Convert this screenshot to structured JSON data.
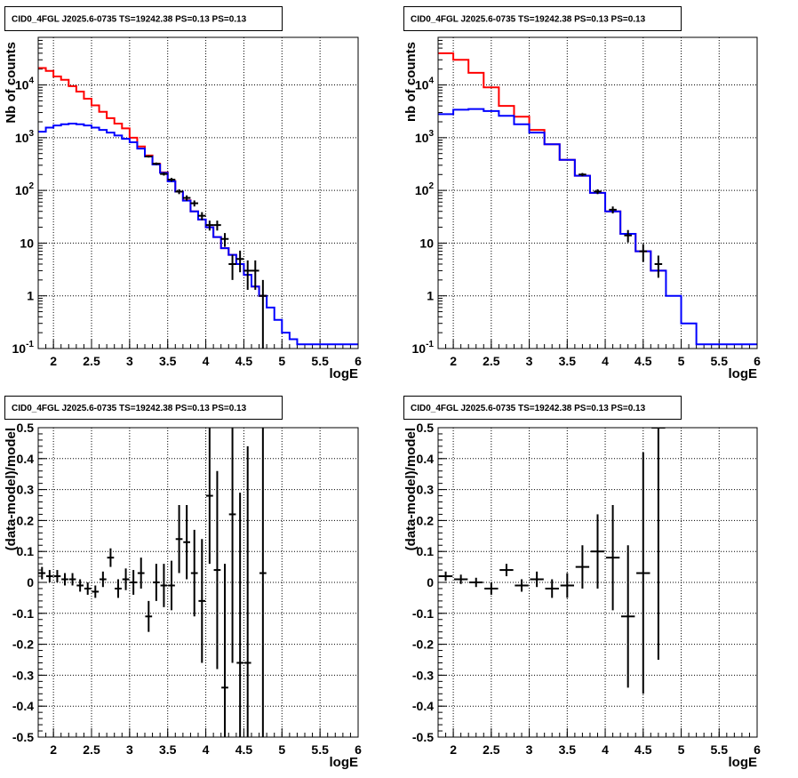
{
  "chart_data": [
    {
      "type": "step",
      "title": "CID0_4FGL J2025.6-0735 TS=19242.38 PS=0.13 PS=0.13",
      "xlabel": "logE",
      "ylabel": "Nb of counts",
      "xlim": [
        1.8,
        6
      ],
      "ylim": [
        0.1,
        80000
      ],
      "yscale": "log",
      "grid": true,
      "x_ticks": [
        "2",
        "2.5",
        "3",
        "3.5",
        "4",
        "4.5",
        "5",
        "5.5",
        "6"
      ],
      "y_ticks": [
        "10^-1",
        "1",
        "10",
        "10^2",
        "10^3",
        "10^4"
      ],
      "series": [
        {
          "color": "#ff0000",
          "bin_width": 0.1,
          "x": [
            1.85,
            1.95,
            2.05,
            2.15,
            2.25,
            2.35,
            2.45,
            2.55,
            2.65,
            2.75,
            2.85,
            2.95,
            3.05,
            3.15,
            3.25,
            3.35,
            3.45,
            3.55,
            3.65,
            3.75,
            3.85,
            3.95,
            4.05,
            4.15,
            4.25,
            4.35,
            4.45,
            4.55,
            4.65,
            4.75
          ],
          "values": [
            21000,
            18500,
            14500,
            12500,
            9500,
            7500,
            5500,
            4100,
            3100,
            2350,
            1850,
            1500,
            1000,
            680,
            460,
            320,
            220,
            150,
            95,
            65,
            40,
            28,
            20,
            13,
            8,
            6,
            4,
            2.5,
            1.5,
            1.0
          ]
        },
        {
          "color": "#0000ff",
          "bin_width": 0.1,
          "x": [
            1.85,
            1.95,
            2.05,
            2.15,
            2.25,
            2.35,
            2.45,
            2.55,
            2.65,
            2.75,
            2.85,
            2.95,
            3.05,
            3.15,
            3.25,
            3.35,
            3.45,
            3.55,
            3.65,
            3.75,
            3.85,
            3.95,
            4.05,
            4.15,
            4.25,
            4.35,
            4.45,
            4.55,
            4.65,
            4.75,
            4.85,
            4.95,
            5.05,
            5.15,
            5.25,
            5.35,
            5.45,
            5.55,
            5.65,
            5.75,
            5.85,
            5.95
          ],
          "values": [
            1300,
            1550,
            1700,
            1800,
            1850,
            1800,
            1700,
            1550,
            1400,
            1250,
            1100,
            950,
            820,
            620,
            440,
            310,
            215,
            148,
            95,
            64,
            40,
            28,
            20,
            13,
            8,
            6,
            4,
            2.5,
            1.5,
            1.0,
            0.6,
            0.35,
            0.2,
            0.15,
            0.12,
            0.12,
            0.12,
            0.12,
            0.12,
            0.12,
            0.12,
            0.12
          ]
        },
        {
          "color": "#000000",
          "style": "points-errorbars",
          "x": [
            3.25,
            3.35,
            3.45,
            3.55,
            3.65,
            3.75,
            3.85,
            3.95,
            4.05,
            4.15,
            4.25,
            4.35,
            4.45,
            4.55,
            4.65,
            4.75
          ],
          "values": [
            440,
            320,
            205,
            160,
            95,
            72,
            57,
            33,
            22,
            22,
            12,
            4,
            5,
            3,
            3,
            1
          ],
          "errors": [
            21,
            18,
            14,
            13,
            10,
            8.5,
            7.5,
            5.7,
            4.7,
            4.7,
            3.5,
            2,
            2.2,
            1.7,
            1.7,
            1
          ]
        }
      ]
    },
    {
      "type": "step",
      "title": "CID0_4FGL J2025.6-0735 TS=19242.38 PS=0.13 PS=0.13",
      "xlabel": "logE",
      "ylabel": "nb of counts",
      "xlim": [
        1.8,
        6
      ],
      "ylim": [
        0.1,
        80000
      ],
      "yscale": "log",
      "grid": true,
      "x_ticks": [
        "2",
        "2.5",
        "3",
        "3.5",
        "4",
        "4.5",
        "5",
        "5.5",
        "6"
      ],
      "y_ticks": [
        "10^-1",
        "1",
        "10",
        "10^2",
        "10^3",
        "10^4"
      ],
      "series": [
        {
          "color": "#ff0000",
          "bin_width": 0.2,
          "x": [
            1.9,
            2.1,
            2.3,
            2.5,
            2.7,
            2.9,
            3.1,
            3.3,
            3.5,
            3.7,
            3.9,
            4.1,
            4.3,
            4.5,
            4.7
          ],
          "values": [
            40000,
            30000,
            17000,
            9000,
            4000,
            2500,
            1400,
            750,
            380,
            190,
            90,
            40,
            15,
            7,
            3
          ]
        },
        {
          "color": "#0000ff",
          "bin_width": 0.2,
          "x": [
            1.9,
            2.1,
            2.3,
            2.5,
            2.7,
            2.9,
            3.1,
            3.3,
            3.5,
            3.7,
            3.9,
            4.1,
            4.3,
            4.5,
            4.7,
            4.9,
            5.1,
            5.3,
            5.5,
            5.7,
            5.9
          ],
          "values": [
            2800,
            3400,
            3500,
            3200,
            2600,
            1800,
            1250,
            750,
            380,
            190,
            90,
            40,
            15,
            7,
            3,
            1,
            0.3,
            0.12,
            0.12,
            0.12,
            0.12
          ]
        },
        {
          "color": "#000000",
          "style": "points-errorbars",
          "x": [
            3.7,
            3.9,
            4.1,
            4.3,
            4.5,
            4.7
          ],
          "values": [
            200,
            95,
            43,
            14,
            7,
            4
          ],
          "errors": [
            14,
            10,
            6.5,
            3.7,
            2.6,
            1.8
          ]
        }
      ]
    },
    {
      "type": "scatter",
      "title": "CID0_4FGL J2025.6-0735 TS=19242.38 PS=0.13 PS=0.13",
      "xlabel": "logE",
      "ylabel": "(data-model)/model",
      "xlim": [
        1.8,
        6
      ],
      "ylim": [
        -0.5,
        0.5
      ],
      "grid": true,
      "x_ticks": [
        "2",
        "2.5",
        "3",
        "3.5",
        "4",
        "4.5",
        "5",
        "5.5",
        "6"
      ],
      "y_ticks": [
        "-0.5",
        "-0.4",
        "-0.3",
        "-0.2",
        "-0.1",
        "0",
        "0.1",
        "0.2",
        "0.3",
        "0.4",
        "0.5"
      ],
      "bin_width": 0.1,
      "x": [
        1.85,
        1.95,
        2.05,
        2.15,
        2.25,
        2.35,
        2.45,
        2.55,
        2.65,
        2.75,
        2.85,
        2.95,
        3.05,
        3.15,
        3.25,
        3.35,
        3.45,
        3.55,
        3.65,
        3.75,
        3.85,
        3.95,
        4.05,
        4.15,
        4.25,
        4.35,
        4.45,
        4.55,
        4.75
      ],
      "values": [
        0.03,
        0.02,
        0.02,
        0.01,
        0.01,
        -0.01,
        -0.02,
        -0.03,
        0.01,
        0.08,
        -0.02,
        0.01,
        0.0,
        0.03,
        -0.11,
        0.0,
        -0.01,
        -0.01,
        0.14,
        0.13,
        0.03,
        -0.06,
        0.28,
        0.04,
        -0.34,
        0.22,
        -0.26,
        -0.26,
        0.03
      ],
      "errors": [
        0.02,
        0.02,
        0.02,
        0.02,
        0.02,
        0.02,
        0.02,
        0.02,
        0.025,
        0.03,
        0.03,
        0.035,
        0.04,
        0.05,
        0.05,
        0.06,
        0.07,
        0.08,
        0.11,
        0.12,
        0.14,
        0.2,
        0.22,
        0.32,
        0.4,
        0.48,
        0.55,
        0.7,
        0.9
      ]
    },
    {
      "type": "scatter",
      "title": "CID0_4FGL J2025.6-0735 TS=19242.38 PS=0.13 PS=0.13",
      "xlabel": "logE",
      "ylabel": "(data-model)/model",
      "xlim": [
        1.8,
        6
      ],
      "ylim": [
        -0.5,
        0.5
      ],
      "grid": true,
      "x_ticks": [
        "2",
        "2.5",
        "3",
        "3.5",
        "4",
        "4.5",
        "5",
        "5.5",
        "6"
      ],
      "y_ticks": [
        "-0.5",
        "-0.4",
        "-0.3",
        "-0.2",
        "-0.1",
        "0",
        "0.1",
        "0.2",
        "0.3",
        "0.4",
        "0.5"
      ],
      "bin_width": 0.2,
      "x": [
        1.9,
        2.1,
        2.3,
        2.5,
        2.7,
        2.9,
        3.1,
        3.3,
        3.5,
        3.7,
        3.9,
        4.1,
        4.3,
        4.5,
        4.7
      ],
      "values": [
        0.02,
        0.01,
        0.0,
        -0.02,
        0.04,
        -0.01,
        0.01,
        -0.02,
        -0.01,
        0.05,
        0.1,
        0.08,
        -0.11,
        0.03,
        0.5
      ],
      "errors": [
        0.015,
        0.015,
        0.015,
        0.02,
        0.02,
        0.02,
        0.025,
        0.03,
        0.04,
        0.07,
        0.12,
        0.17,
        0.23,
        0.39,
        0.75
      ]
    }
  ]
}
